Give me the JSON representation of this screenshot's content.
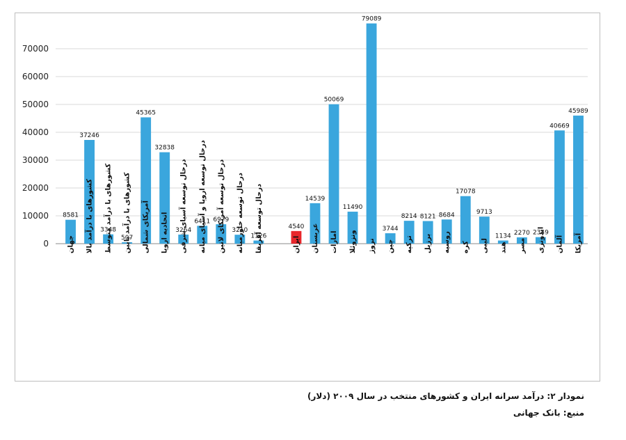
{
  "chart_data": {
    "type": "bar",
    "title": "",
    "xlabel": "",
    "ylabel": "",
    "ylim": [
      0,
      80000
    ],
    "yticks": [
      0,
      10000,
      20000,
      30000,
      40000,
      50000,
      60000,
      70000
    ],
    "grid": true,
    "bar_color": "#3aa6dd",
    "highlight_color": "#e8262b",
    "categories": [
      "جهان",
      "کشورهای با درآمد بالا",
      "کشورهای با درآمد متوسط",
      "کشورهای با درآمد پایین",
      "آمریکای شمالی",
      "اتحادیه اروپا",
      "درحال توسعه آسیای شرقی",
      "درحال توسعه اروپا و آسیای میانه",
      "درحال توسعه آمریکای لاتین",
      "درحال توسعه خاورمیانه",
      "درحال توسعه آفریقا",
      "ایران",
      "عربستان",
      "امارات",
      "ونزوئلا",
      "نروژ",
      "چین",
      "ترکیه",
      "برزیل",
      "روسیه",
      "کره",
      "لیبی",
      "هند",
      "مصر",
      "اندونزی",
      "آلمان",
      "آمریکا"
    ],
    "values": [
      8581,
      37246,
      3348,
      507,
      45365,
      32838,
      3264,
      6411,
      6979,
      3210,
      1126,
      4540,
      14539,
      50069,
      11490,
      79089,
      3744,
      8214,
      8121,
      8684,
      17078,
      9713,
      1134,
      2270,
      2349,
      40669,
      45989
    ],
    "highlight_category": "ایران"
  },
  "caption": {
    "title": "نمودار ۲: درآمد سرانه ایران و کشورهای منتخب در سال ۲۰۰۹ (دلار)",
    "source": "منبع: بانک جهانی"
  }
}
